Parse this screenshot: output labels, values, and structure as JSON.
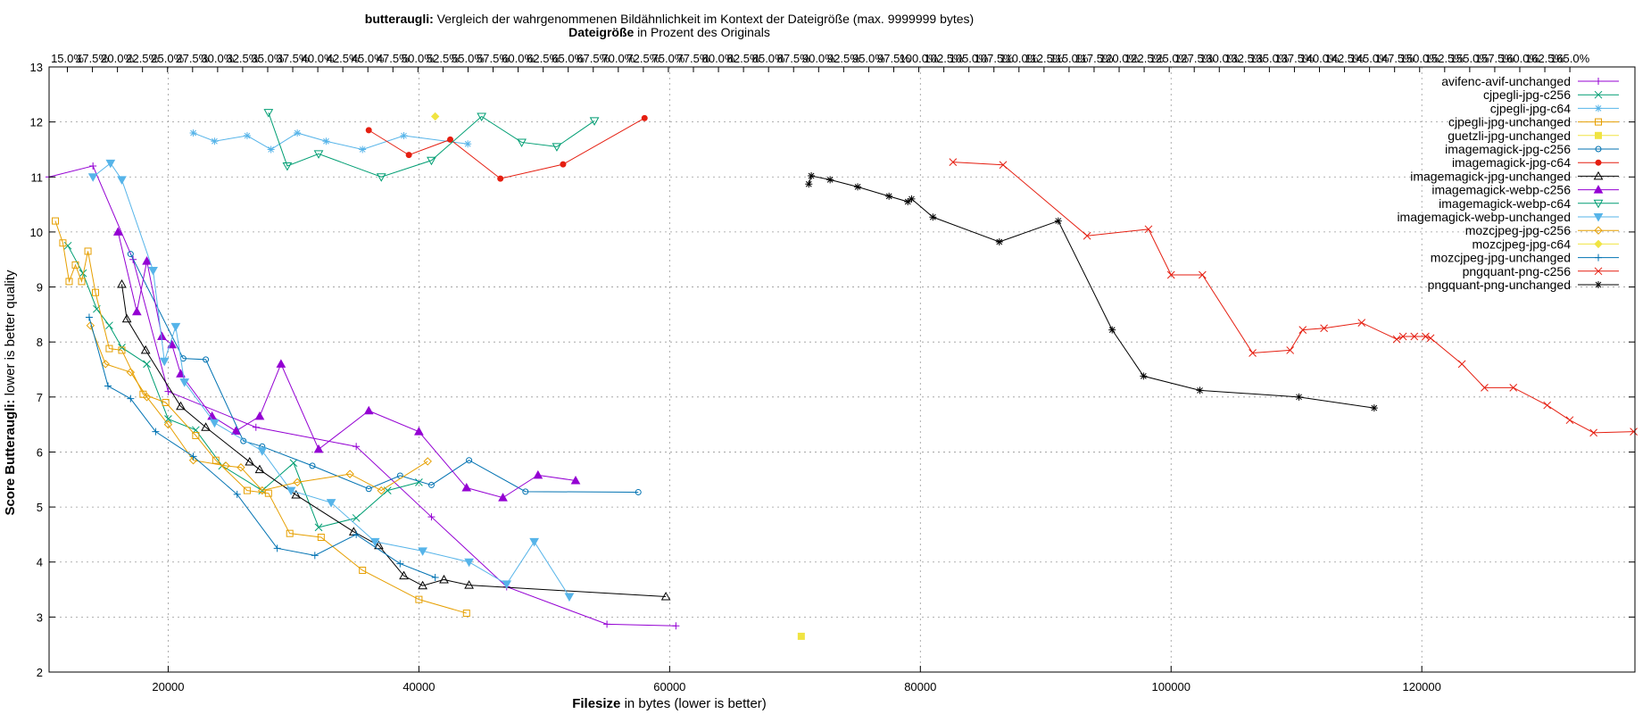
{
  "chart_data": {
    "type": "line",
    "title_bold": "butteraugli:",
    "title_rest": " Vergleich der wahrgenommenen Bildähnlichkeit im Kontext der Dateigröße (max. 9999999 bytes)",
    "top_axis_bold": "Dateigröße",
    "top_axis_rest": " in Prozent des Originals",
    "xlabel_bold": "Filesize",
    "xlabel_rest": " in bytes (lower is better)",
    "ylabel_bold": "Score Butteraugli:",
    "ylabel_rest": " lower is better quality",
    "xlim": [
      10500,
      137000
    ],
    "ylim": [
      2,
      13
    ],
    "x_ticks": [
      20000,
      40000,
      60000,
      80000,
      100000,
      120000
    ],
    "y_ticks": [
      2,
      3,
      4,
      5,
      6,
      7,
      8,
      9,
      10,
      11,
      12,
      13
    ],
    "top_ticks": [
      "15.0%",
      "17.5%",
      "20.0%",
      "22.5%",
      "25.0%",
      "27.5%",
      "30.0%",
      "32.5%",
      "35.0%",
      "37.5%",
      "40.0%",
      "42.5%",
      "45.0%",
      "47.5%",
      "50.0%",
      "52.5%",
      "55.0%",
      "57.5%",
      "60.0%",
      "62.5%",
      "65.0%",
      "67.5%",
      "70.0%",
      "72.5%",
      "75.0%",
      "77.5%",
      "80.0%",
      "82.5%",
      "85.0%",
      "87.5%",
      "90.0%",
      "92.5%",
      "95.0%",
      "97.5%",
      "100.0%",
      "102.5%",
      "105.0%",
      "107.5%",
      "110.0%",
      "112.5%",
      "115.0%",
      "117.5%",
      "120.0%",
      "122.5%",
      "125.0%",
      "127.5%",
      "130.0%",
      "132.5%",
      "135.0%",
      "137.5%",
      "140.0%",
      "142.5%",
      "145.0%",
      "147.5%",
      "150.0%",
      "152.5%",
      "155.0%",
      "157.5%",
      "160.0%",
      "162.5%",
      "165.0%"
    ],
    "grid": true,
    "legend_position": "top-right",
    "series": [
      {
        "name": "avifenc-avif-unchanged",
        "color": "#9400d3",
        "marker": "plus",
        "points": [
          [
            10500,
            11.0
          ],
          [
            14000,
            11.2
          ],
          [
            17200,
            9.5
          ],
          [
            20000,
            7.1
          ],
          [
            27000,
            6.45
          ],
          [
            35000,
            6.1
          ],
          [
            41000,
            4.82
          ],
          [
            47000,
            3.55
          ],
          [
            55000,
            2.87
          ],
          [
            60500,
            2.84
          ]
        ]
      },
      {
        "name": "cjpegli-jpg-c256",
        "color": "#009e73",
        "marker": "cross",
        "points": [
          [
            12000,
            9.75
          ],
          [
            13200,
            9.25
          ],
          [
            14300,
            8.6
          ],
          [
            15300,
            8.3
          ],
          [
            16300,
            7.9
          ],
          [
            18300,
            7.6
          ],
          [
            20000,
            6.6
          ],
          [
            22200,
            6.4
          ],
          [
            24300,
            5.75
          ],
          [
            27500,
            5.3
          ],
          [
            30000,
            5.8
          ],
          [
            32000,
            4.63
          ],
          [
            35000,
            4.8
          ],
          [
            37500,
            5.3
          ],
          [
            40000,
            5.45
          ]
        ]
      },
      {
        "name": "cjpegli-jpg-c64",
        "color": "#56b4e9",
        "marker": "star",
        "points": [
          [
            22000,
            11.8
          ],
          [
            23700,
            11.65
          ],
          [
            26300,
            11.75
          ],
          [
            28200,
            11.5
          ],
          [
            30300,
            11.8
          ],
          [
            32600,
            11.65
          ],
          [
            35500,
            11.5
          ],
          [
            38800,
            11.75
          ],
          [
            43900,
            11.6
          ]
        ]
      },
      {
        "name": "cjpegli-jpg-unchanged",
        "color": "#e69f00",
        "marker": "square",
        "points": [
          [
            11000,
            10.2
          ],
          [
            11600,
            9.8
          ],
          [
            12100,
            9.1
          ],
          [
            12600,
            9.4
          ],
          [
            13100,
            9.1
          ],
          [
            13600,
            9.65
          ],
          [
            14200,
            8.9
          ],
          [
            15300,
            7.88
          ],
          [
            16300,
            7.85
          ],
          [
            18000,
            7.05
          ],
          [
            19800,
            6.9
          ],
          [
            22200,
            6.3
          ],
          [
            23800,
            5.85
          ],
          [
            26300,
            5.3
          ],
          [
            28000,
            5.25
          ],
          [
            29700,
            4.52
          ],
          [
            32200,
            4.45
          ],
          [
            35500,
            3.85
          ],
          [
            40000,
            3.32
          ],
          [
            43800,
            3.07
          ]
        ]
      },
      {
        "name": "guetzli-jpg-unchanged",
        "color": "#f0e442",
        "marker": "fsquare",
        "points": [
          [
            70500,
            2.65
          ]
        ]
      },
      {
        "name": "imagemagick-jpg-c256",
        "color": "#0072b2",
        "marker": "circle",
        "points": [
          [
            17000,
            9.6
          ],
          [
            21200,
            7.7
          ],
          [
            23000,
            7.68
          ],
          [
            26000,
            6.2
          ],
          [
            27500,
            6.1
          ],
          [
            31500,
            5.75
          ],
          [
            36000,
            5.33
          ],
          [
            38500,
            5.57
          ],
          [
            41000,
            5.4
          ],
          [
            44000,
            5.85
          ],
          [
            48500,
            5.28
          ],
          [
            57500,
            5.27
          ]
        ]
      },
      {
        "name": "imagemagick-jpg-c64",
        "color": "#e51e10",
        "marker": "fcircle",
        "points": [
          [
            36000,
            11.85
          ],
          [
            39200,
            11.4
          ],
          [
            42500,
            11.68
          ],
          [
            46500,
            10.97
          ],
          [
            51500,
            11.23
          ],
          [
            58000,
            12.07
          ]
        ]
      },
      {
        "name": "imagemagick-jpg-unchanged",
        "color": "#000000",
        "marker": "triangle",
        "points": [
          [
            16300,
            9.05
          ],
          [
            16700,
            8.42
          ],
          [
            18200,
            7.85
          ],
          [
            21000,
            6.83
          ],
          [
            23000,
            6.45
          ],
          [
            26500,
            5.82
          ],
          [
            27300,
            5.68
          ],
          [
            30200,
            5.22
          ],
          [
            34800,
            4.55
          ],
          [
            36800,
            4.3
          ],
          [
            38800,
            3.75
          ],
          [
            40300,
            3.57
          ],
          [
            42000,
            3.68
          ],
          [
            44000,
            3.58
          ],
          [
            59700,
            3.37
          ]
        ]
      },
      {
        "name": "imagemagick-webp-c256",
        "color": "#9400d3",
        "marker": "ftriangle",
        "points": [
          [
            16000,
            10.0
          ],
          [
            17500,
            8.55
          ],
          [
            18300,
            9.47
          ],
          [
            19500,
            8.1
          ],
          [
            20300,
            7.95
          ],
          [
            21000,
            7.42
          ],
          [
            23500,
            6.65
          ],
          [
            25400,
            6.38
          ],
          [
            27300,
            6.65
          ],
          [
            29000,
            7.6
          ],
          [
            32000,
            6.05
          ],
          [
            36000,
            6.75
          ],
          [
            40000,
            6.37
          ],
          [
            43800,
            5.35
          ],
          [
            46700,
            5.17
          ],
          [
            49500,
            5.58
          ],
          [
            52500,
            5.48
          ]
        ]
      },
      {
        "name": "imagemagick-webp-c64",
        "color": "#009e73",
        "marker": "dtriangle",
        "points": [
          [
            28000,
            12.17
          ],
          [
            29500,
            11.2
          ],
          [
            32000,
            11.42
          ],
          [
            37000,
            11.0
          ],
          [
            41000,
            11.3
          ],
          [
            45000,
            12.1
          ],
          [
            48200,
            11.63
          ],
          [
            51000,
            11.55
          ],
          [
            54000,
            12.02
          ]
        ]
      },
      {
        "name": "imagemagick-webp-unchanged",
        "color": "#56b4e9",
        "marker": "fdtriangle",
        "points": [
          [
            14000,
            11.0
          ],
          [
            15400,
            11.25
          ],
          [
            16300,
            10.95
          ],
          [
            18800,
            9.3
          ],
          [
            19700,
            7.65
          ],
          [
            20600,
            8.28
          ],
          [
            21300,
            7.27
          ],
          [
            23700,
            6.53
          ],
          [
            27500,
            6.02
          ],
          [
            29800,
            5.3
          ],
          [
            33000,
            5.08
          ],
          [
            36500,
            4.37
          ],
          [
            40300,
            4.2
          ],
          [
            44000,
            4.0
          ],
          [
            47000,
            3.6
          ],
          [
            49200,
            4.37
          ],
          [
            52000,
            3.37
          ]
        ]
      },
      {
        "name": "mozcjpeg-jpg-c256",
        "color": "#e69f00",
        "marker": "diamond",
        "points": [
          [
            13800,
            8.3
          ],
          [
            15000,
            7.6
          ],
          [
            17000,
            7.45
          ],
          [
            18300,
            7.0
          ],
          [
            20000,
            6.5
          ],
          [
            22000,
            5.85
          ],
          [
            24600,
            5.75
          ],
          [
            25800,
            5.72
          ],
          [
            27500,
            5.3
          ],
          [
            30300,
            5.45
          ],
          [
            34500,
            5.6
          ],
          [
            37000,
            5.3
          ],
          [
            40700,
            5.83
          ]
        ]
      },
      {
        "name": "mozcjpeg-jpg-c64",
        "color": "#f0e442",
        "marker": "fdiamond",
        "points": [
          [
            41300,
            12.1
          ]
        ]
      },
      {
        "name": "mozcjpeg-jpg-unchanged",
        "color": "#0072b2",
        "marker": "plus",
        "points": [
          [
            13700,
            8.45
          ],
          [
            15200,
            7.2
          ],
          [
            17000,
            6.97
          ],
          [
            19000,
            6.37
          ],
          [
            22000,
            5.92
          ],
          [
            25500,
            5.23
          ],
          [
            28700,
            4.25
          ],
          [
            31700,
            4.12
          ],
          [
            35000,
            4.5
          ],
          [
            38500,
            3.97
          ],
          [
            41300,
            3.72
          ]
        ]
      },
      {
        "name": "pngquant-png-c256",
        "color": "#e51e10",
        "marker": "cross",
        "points": [
          [
            82600,
            11.27
          ],
          [
            86600,
            11.22
          ],
          [
            93300,
            9.93
          ],
          [
            98200,
            10.05
          ],
          [
            100000,
            9.22
          ],
          [
            102500,
            9.22
          ],
          [
            106500,
            7.8
          ],
          [
            109500,
            7.85
          ],
          [
            110500,
            8.22
          ],
          [
            112200,
            8.25
          ],
          [
            115200,
            8.35
          ],
          [
            118000,
            8.05
          ],
          [
            118500,
            8.1
          ],
          [
            119400,
            8.1
          ],
          [
            120300,
            8.1
          ],
          [
            120700,
            8.07
          ],
          [
            123200,
            7.6
          ],
          [
            125000,
            7.17
          ],
          [
            127300,
            7.17
          ],
          [
            130000,
            6.85
          ],
          [
            131800,
            6.58
          ],
          [
            133700,
            6.35
          ],
          [
            136900,
            6.37
          ]
        ]
      },
      {
        "name": "pngquant-png-unchanged",
        "color": "#000000",
        "marker": "star",
        "points": [
          [
            71100,
            10.87
          ],
          [
            71300,
            11.02
          ],
          [
            72800,
            10.95
          ],
          [
            75000,
            10.82
          ],
          [
            77500,
            10.65
          ],
          [
            79000,
            10.55
          ],
          [
            79300,
            10.6
          ],
          [
            81000,
            10.27
          ],
          [
            86300,
            9.82
          ],
          [
            91000,
            10.2
          ],
          [
            95300,
            8.22
          ],
          [
            97800,
            7.38
          ],
          [
            102300,
            7.12
          ],
          [
            110200,
            7.0
          ],
          [
            116200,
            6.8
          ]
        ]
      }
    ]
  }
}
